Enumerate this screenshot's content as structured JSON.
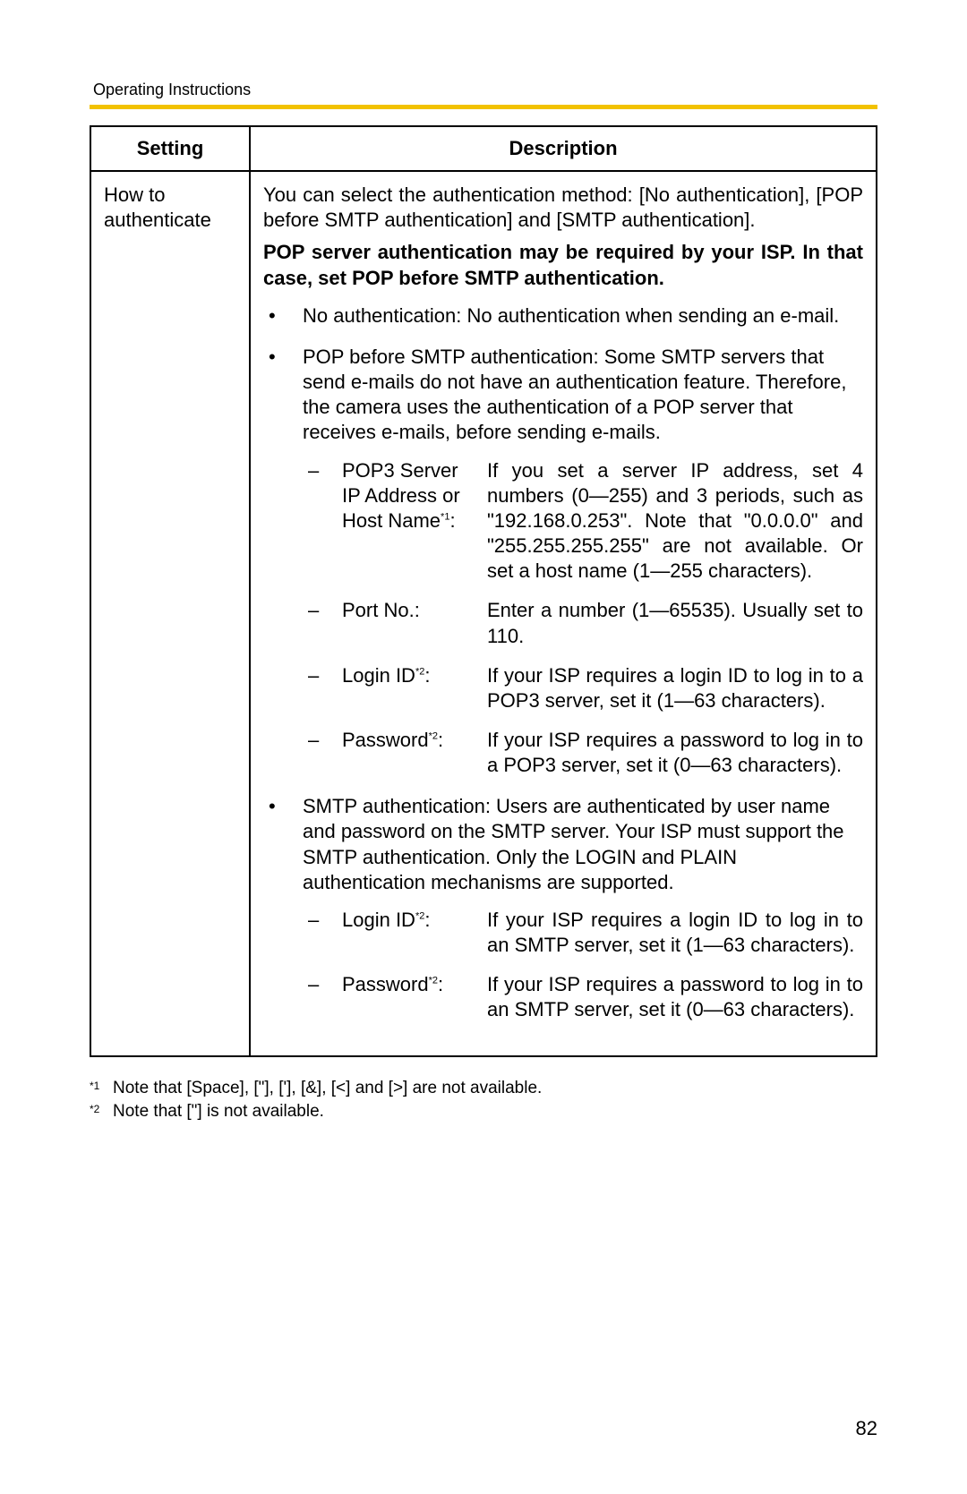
{
  "header": "Operating Instructions",
  "accent_color": "#f2c200",
  "table": {
    "columns": [
      "Setting",
      "Description"
    ],
    "row": {
      "setting": "How to authenticate",
      "intro": "You can select the authentication method: [No authentication], [POP before SMTP authentication] and [SMTP authentication].",
      "bold_note": "POP server authentication may be required by your ISP. In that case, set POP before SMTP authentication.",
      "bullets": [
        "No authentication: No authentication when sending an e-mail.",
        "POP before SMTP authentication: Some SMTP servers that send e-mails do not have an authentication feature. Therefore, the camera uses the authentication of a POP server that receives e-mails, before sending e-mails.",
        "SMTP authentication: Users are authenticated by user name and password on the SMTP server. Your ISP must support the SMTP authentication. Only the LOGIN and PLAIN authentication mechanisms are supported."
      ],
      "pop_params": [
        {
          "label_pre": "POP3 Server IP Address or Host Name",
          "sup": "*1",
          "label_post": ":",
          "value": "If you set a server IP address, set 4 numbers (0—255) and 3 periods, such as \"192.168.0.253\". Note that \"0.0.0.0\" and \"255.255.255.255\" are not available. Or set a host name (1—255 characters)."
        },
        {
          "label_pre": "Port No.",
          "sup": "",
          "label_post": ":",
          "value": "Enter a number (1—65535). Usually set to 110."
        },
        {
          "label_pre": "Login ID",
          "sup": "*2",
          "label_post": ":",
          "value": "If your ISP requires a login ID to log in to a POP3 server, set it (1—63 characters)."
        },
        {
          "label_pre": "Password",
          "sup": "*2",
          "label_post": ":",
          "value": "If your ISP requires a password to log in to a POP3 server, set it (0—63 characters)."
        }
      ],
      "smtp_params": [
        {
          "label_pre": "Login ID",
          "sup": "*2",
          "label_post": ":",
          "value": "If your ISP requires a login ID to log in to an SMTP server, set it (1—63 characters)."
        },
        {
          "label_pre": "Password",
          "sup": "*2",
          "label_post": ":",
          "value": "If your ISP requires a password to log in to an SMTP server, set it (0—63 characters)."
        }
      ]
    }
  },
  "footnotes": [
    {
      "mark": "*1",
      "text": "Note that [Space], [\"], ['], [&], [<] and [>] are not available."
    },
    {
      "mark": "*2",
      "text": "Note that [\"] is not available."
    }
  ],
  "page_number": "82"
}
